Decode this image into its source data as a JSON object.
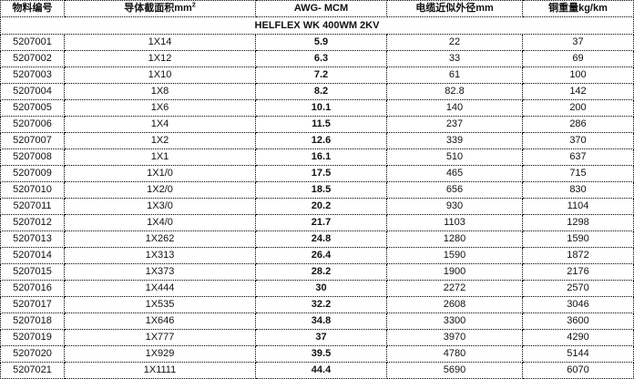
{
  "headers": [
    "物料编号",
    "导体截面积mm",
    "AWG- MCM",
    "电缆近似外径mm",
    "铜重量kg/km"
  ],
  "header_sup": "2",
  "subtitle": "HELFLEX WK 400WM 2KV",
  "rows": [
    [
      "5207001",
      "1X14",
      "5.9",
      "22",
      "37"
    ],
    [
      "5207002",
      "1X12",
      "6.3",
      "33",
      "69"
    ],
    [
      "5207003",
      "1X10",
      "7.2",
      "61",
      "100"
    ],
    [
      "5207004",
      "1X8",
      "8.2",
      "82.8",
      "142"
    ],
    [
      "5207005",
      "1X6",
      "10.1",
      "140",
      "200"
    ],
    [
      "5207006",
      "1X4",
      "11.5",
      "237",
      "286"
    ],
    [
      "5207007",
      "1X2",
      "12.6",
      "339",
      "370"
    ],
    [
      "5207008",
      "1X1",
      "16.1",
      "510",
      "637"
    ],
    [
      "5207009",
      "1X1/0",
      "17.5",
      "465",
      "715"
    ],
    [
      "5207010",
      "1X2/0",
      "18.5",
      "656",
      "830"
    ],
    [
      "5207011",
      "1X3/0",
      "20.2",
      "930",
      "1104"
    ],
    [
      "5207012",
      "1X4/0",
      "21.7",
      "1103",
      "1298"
    ],
    [
      "5207013",
      "1X262",
      "24.8",
      "1280",
      "1590"
    ],
    [
      "5207014",
      "1X313",
      "26.4",
      "1590",
      "1872"
    ],
    [
      "5207015",
      "1X373",
      "28.2",
      "1900",
      "2176"
    ],
    [
      "5207016",
      "1X444",
      "30",
      "2272",
      "2570"
    ],
    [
      "5207017",
      "1X535",
      "32.2",
      "2608",
      "3046"
    ],
    [
      "5207018",
      "1X646",
      "34.8",
      "3300",
      "3600"
    ],
    [
      "5207019",
      "1X777",
      "37",
      "3970",
      "4290"
    ],
    [
      "5207020",
      "1X929",
      "39.5",
      "4780",
      "5144"
    ],
    [
      "5207021",
      "1X1111",
      "44.4",
      "5690",
      "6070"
    ]
  ]
}
